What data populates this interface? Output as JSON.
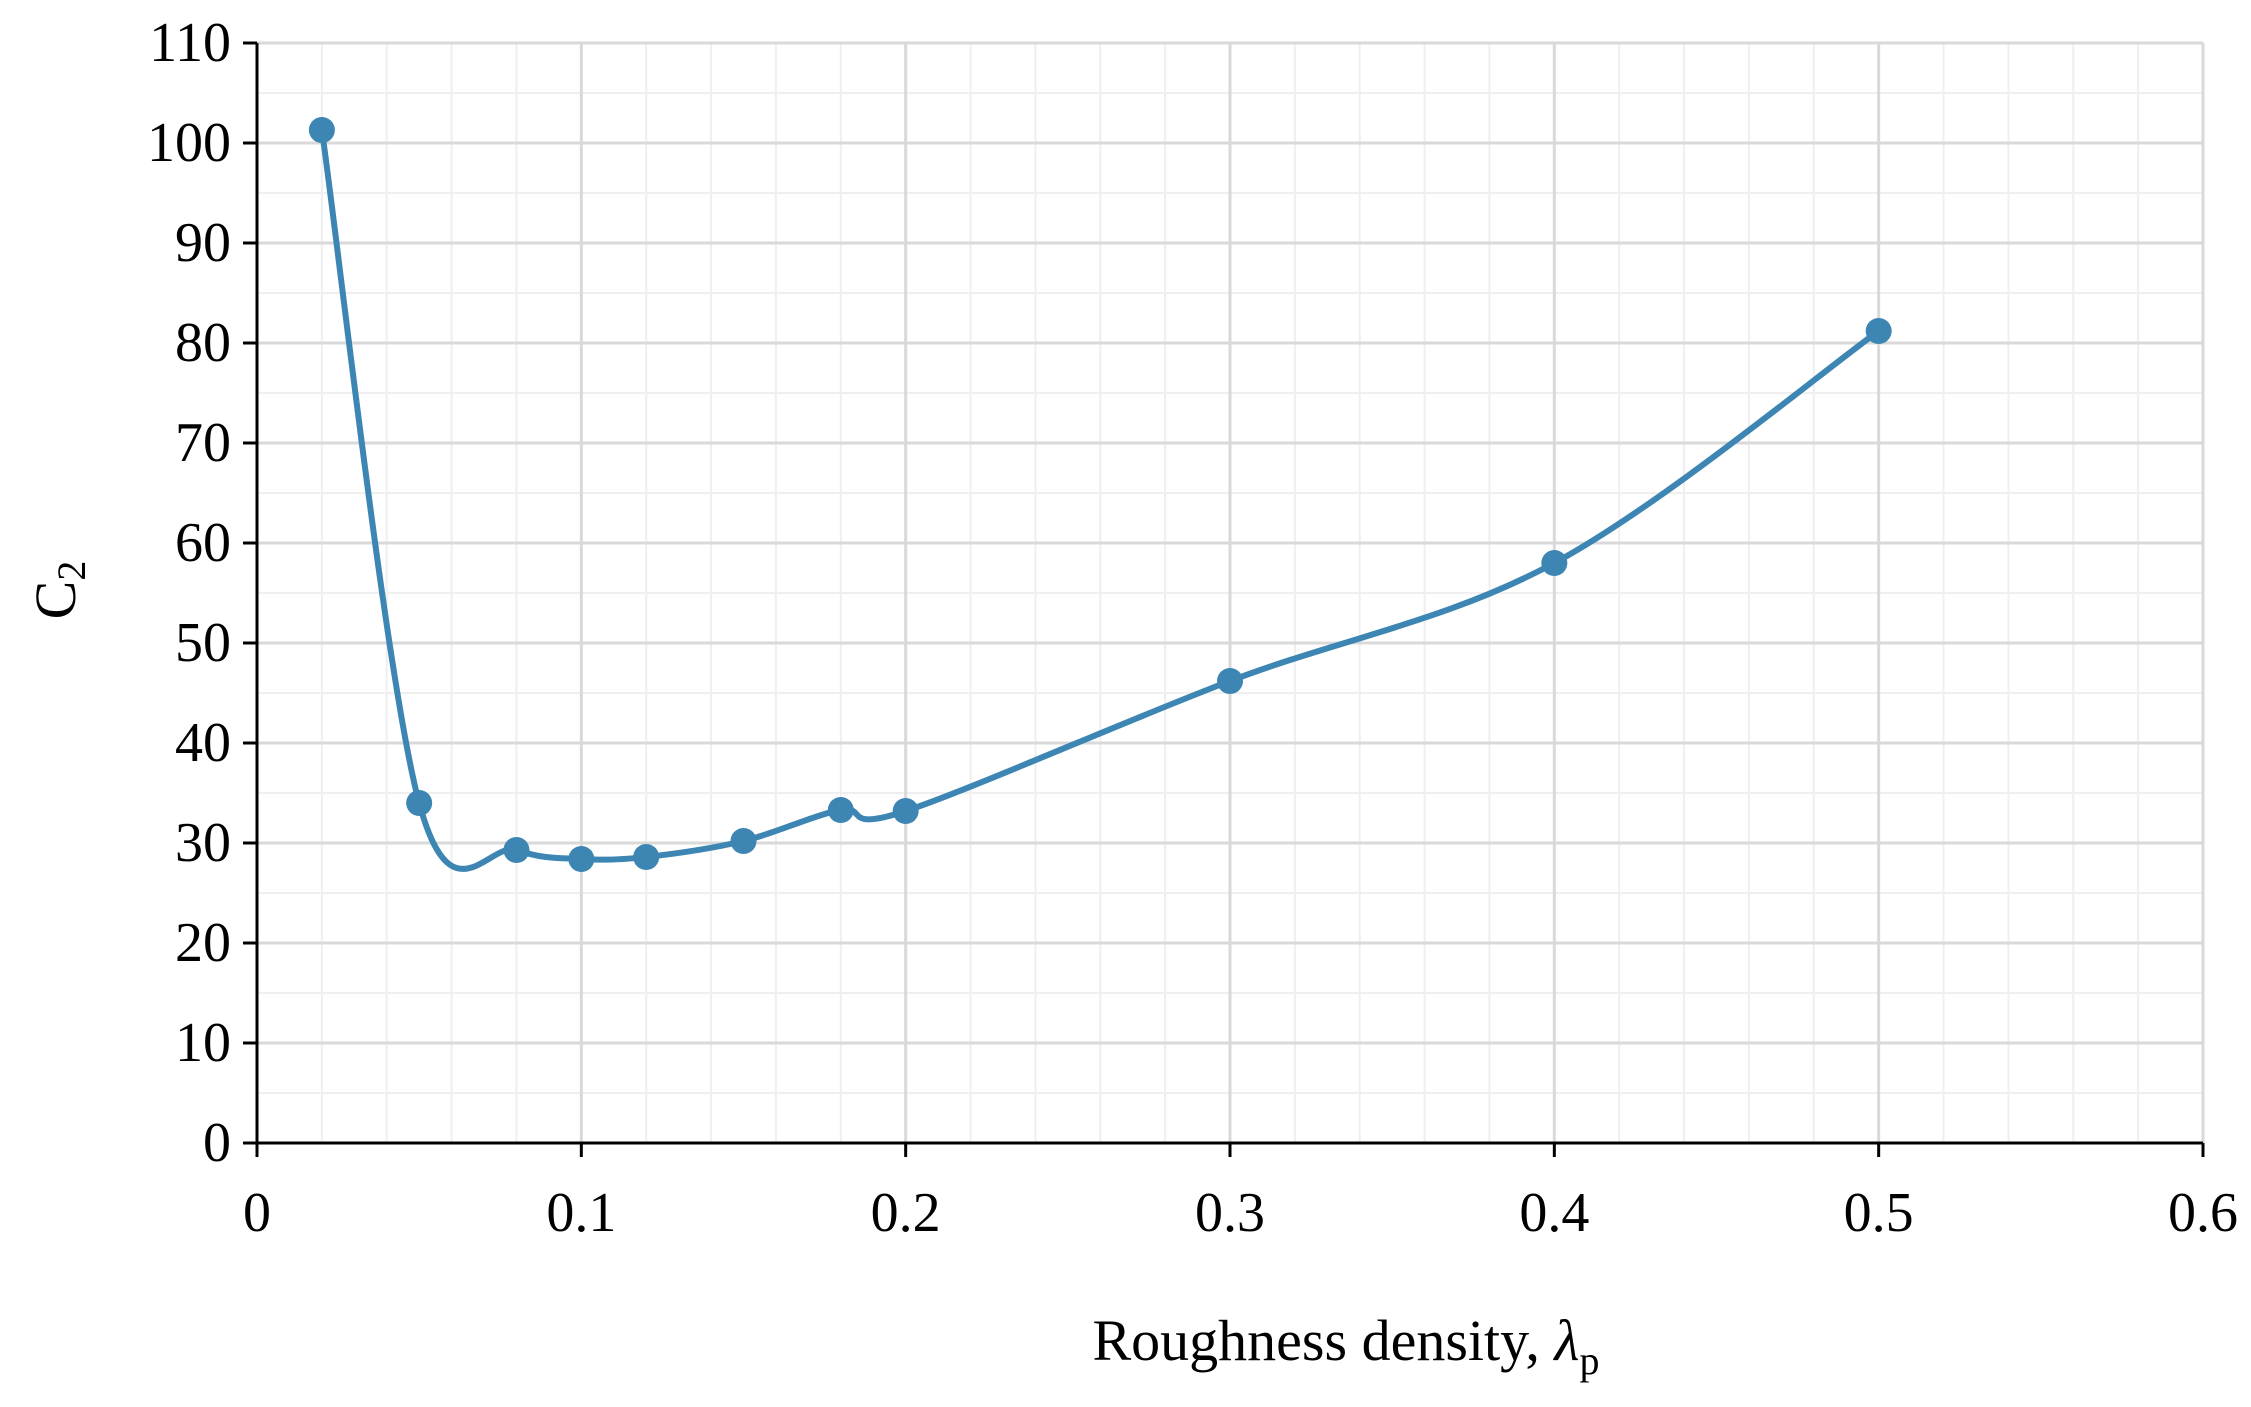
{
  "chart_data": {
    "type": "line",
    "title": "",
    "xlabel": "Roughness density, ",
    "xlabel_symbol": "λ",
    "xlabel_subscript": "p",
    "ylabel": "C",
    "ylabel_subscript": "2",
    "xlim": [
      0,
      0.6
    ],
    "ylim": [
      0,
      110
    ],
    "xticks": [
      0,
      0.1,
      0.2,
      0.3,
      0.4,
      0.5,
      0.6
    ],
    "xtick_labels": [
      "0",
      "0.1",
      "0.2",
      "0.3",
      "0.4",
      "0.5",
      "0.6"
    ],
    "xminor_step": 0.02,
    "yticks": [
      0,
      10,
      20,
      30,
      40,
      50,
      60,
      70,
      80,
      90,
      100,
      110
    ],
    "ytick_labels": [
      "0",
      "10",
      "20",
      "30",
      "40",
      "50",
      "60",
      "70",
      "80",
      "90",
      "100",
      "110"
    ],
    "yminor_step": 5,
    "grid": true,
    "legend": "none",
    "smooth": true,
    "series": [
      {
        "color": "#3d86b3",
        "x": [
          0.02,
          0.05,
          0.08,
          0.1,
          0.12,
          0.15,
          0.18,
          0.2,
          0.3,
          0.4,
          0.5
        ],
        "y": [
          101.3,
          34.0,
          29.3,
          28.4,
          28.6,
          30.2,
          33.3,
          33.2,
          46.2,
          58.0,
          81.2
        ]
      }
    ],
    "colors": {
      "axis": "#000000",
      "major_grid": "#d9d9d9",
      "minor_grid": "#efefef"
    }
  }
}
